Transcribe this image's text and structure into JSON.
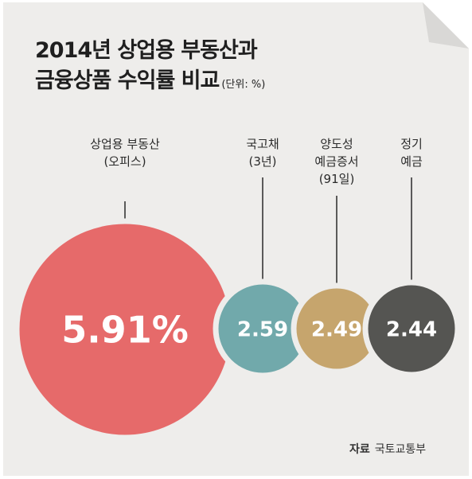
{
  "title_line1": "2014년 상업용 부동산과",
  "title_line2": "금융상품 수익률 비교",
  "unit": "(단위: %)",
  "source_label": "자료",
  "source_value": "국토교통부",
  "colors": {
    "background": "#eeedeb",
    "commercial": "#e66a6a",
    "treasury": "#71a9ab",
    "bond": "#c6a56d",
    "deposit": "#555552"
  },
  "chart_data": {
    "type": "bubble",
    "title": "2014년 상업용 부동산과 금융상품 수익률 비교",
    "unit": "(단위: %)",
    "items": [
      {
        "label_lines": [
          "상업용 부동산",
          "(오피스)"
        ],
        "value": 5.91,
        "display": "5.91%",
        "color": "#e66a6a"
      },
      {
        "label_lines": [
          "국고채",
          "(3년)"
        ],
        "value": 2.59,
        "display": "2.59",
        "color": "#71a9ab"
      },
      {
        "label_lines": [
          "양도성",
          "예금증서",
          "(91일)"
        ],
        "value": 2.49,
        "display": "2.49",
        "color": "#c6a56d"
      },
      {
        "label_lines": [
          "정기",
          "예금"
        ],
        "value": 2.44,
        "display": "2.44",
        "color": "#555552"
      }
    ]
  }
}
